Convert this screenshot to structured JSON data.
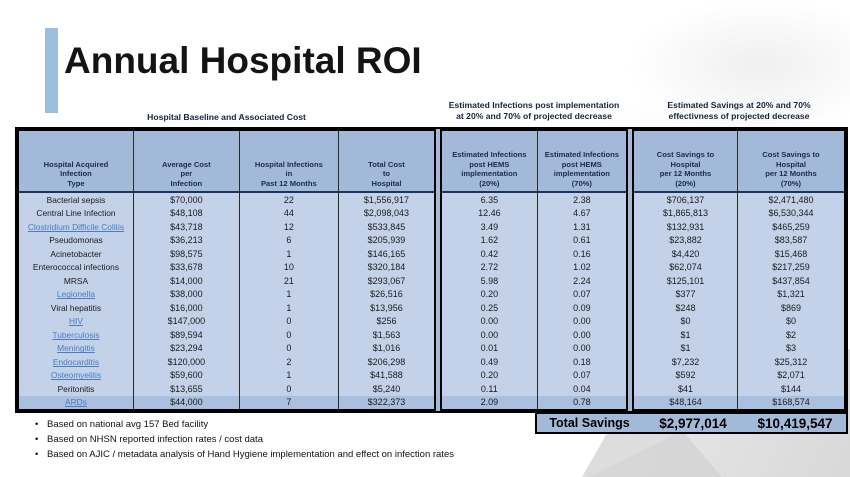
{
  "slide": {
    "title": "Annual Hospital ROI"
  },
  "colors": {
    "accent_bar": "#9abede",
    "table_header_bg": "#a3b9d8",
    "table_row_bg": "#c3d2e8",
    "table_last_row_bg": "#abc0de",
    "link": "#4a7cc0",
    "border": "#000000",
    "header_rule": "#17375e"
  },
  "table": {
    "group_headers": {
      "baseline": "Hospital Baseline and Associated Cost",
      "infections": "Estimated Infections post implementation\nat 20% and 70% of projected decrease",
      "savings": "Estimated Savings at 20% and 70%\neffectivness of projected decrease"
    },
    "columns": [
      "Hospital Acquired\nInfection\nType",
      "Average Cost\nper\nInfection",
      "Hospital Infections\nin\nPast 12 Months",
      "Total Cost\nto\nHospital",
      "Estimated Infections\npost HEMS\nimplementation\n(20%)",
      "Estimated Infections\npost HEMS\nimplementation\n(70%)",
      "Cost Savings to\nHospital\nper 12 Months\n(20%)",
      "Cost Savings to\nHospital\nper 12 Months\n(70%)"
    ],
    "rows": [
      {
        "type": "Bacterial sepsis",
        "link": false,
        "avg_cost": "$70,000",
        "infections": "22",
        "total_cost": "$1,556,917",
        "est20": "6.35",
        "est70": "2.38",
        "sav20": "$706,137",
        "sav70": "$2,471,480"
      },
      {
        "type": "Central Line Infection",
        "link": false,
        "avg_cost": "$48,108",
        "infections": "44",
        "total_cost": "$2,098,043",
        "est20": "12.46",
        "est70": "4.67",
        "sav20": "$1,865,813",
        "sav70": "$6,530,344"
      },
      {
        "type": "Clostridium Difficile Colitis",
        "link": true,
        "avg_cost": "$43,718",
        "infections": "12",
        "total_cost": "$533,845",
        "est20": "3.49",
        "est70": "1.31",
        "sav20": "$132,931",
        "sav70": "$465,259"
      },
      {
        "type": "Pseudomonas",
        "link": false,
        "avg_cost": "$36,213",
        "infections": "6",
        "total_cost": "$205,939",
        "est20": "1.62",
        "est70": "0.61",
        "sav20": "$23,882",
        "sav70": "$83,587"
      },
      {
        "type": "Acinetobacter",
        "link": false,
        "avg_cost": "$98,575",
        "infections": "1",
        "total_cost": "$146,165",
        "est20": "0.42",
        "est70": "0.16",
        "sav20": "$4,420",
        "sav70": "$15,468"
      },
      {
        "type": "Enterococcal infections",
        "link": false,
        "avg_cost": "$33,678",
        "infections": "10",
        "total_cost": "$320,184",
        "est20": "2.72",
        "est70": "1.02",
        "sav20": "$62,074",
        "sav70": "$217,259"
      },
      {
        "type": "MRSA",
        "link": false,
        "avg_cost": "$14,000",
        "infections": "21",
        "total_cost": "$293,067",
        "est20": "5.98",
        "est70": "2.24",
        "sav20": "$125,101",
        "sav70": "$437,854"
      },
      {
        "type": "Legionella",
        "link": true,
        "avg_cost": "$38,000",
        "infections": "1",
        "total_cost": "$26,516",
        "est20": "0.20",
        "est70": "0.07",
        "sav20": "$377",
        "sav70": "$1,321"
      },
      {
        "type": "Viral hepatitis",
        "link": false,
        "avg_cost": "$16,000",
        "infections": "1",
        "total_cost": "$13,956",
        "est20": "0.25",
        "est70": "0.09",
        "sav20": "$248",
        "sav70": "$869"
      },
      {
        "type": "HIV",
        "link": true,
        "avg_cost": "$147,000",
        "infections": "0",
        "total_cost": "$256",
        "est20": "0.00",
        "est70": "0.00",
        "sav20": "$0",
        "sav70": "$0"
      },
      {
        "type": "Tuberculosis",
        "link": true,
        "avg_cost": "$89,594",
        "infections": "0",
        "total_cost": "$1,563",
        "est20": "0.00",
        "est70": "0.00",
        "sav20": "$1",
        "sav70": "$2"
      },
      {
        "type": "Meningitis",
        "link": true,
        "avg_cost": "$23,294",
        "infections": "0",
        "total_cost": "$1,016",
        "est20": "0.01",
        "est70": "0.00",
        "sav20": "$1",
        "sav70": "$3"
      },
      {
        "type": "Endocarditis",
        "link": true,
        "avg_cost": "$120,000",
        "infections": "2",
        "total_cost": "$206,298",
        "est20": "0.49",
        "est70": "0.18",
        "sav20": "$7,232",
        "sav70": "$25,312"
      },
      {
        "type": "Osteomyelitis",
        "link": true,
        "avg_cost": "$59,600",
        "infections": "1",
        "total_cost": "$41,588",
        "est20": "0.20",
        "est70": "0.07",
        "sav20": "$592",
        "sav70": "$2,071"
      },
      {
        "type": "Peritonitis",
        "link": false,
        "avg_cost": "$13,655",
        "infections": "0",
        "total_cost": "$5,240",
        "est20": "0.11",
        "est70": "0.04",
        "sav20": "$41",
        "sav70": "$144"
      },
      {
        "type": "ARDs",
        "link": true,
        "avg_cost": "$44,000",
        "infections": "7",
        "total_cost": "$322,373",
        "est20": "2.09",
        "est70": "0.78",
        "sav20": "$48,164",
        "sav70": "$168,574"
      }
    ],
    "total": {
      "label": "Total Savings",
      "sav20": "$2,977,014",
      "sav70": "$10,419,547"
    }
  },
  "footnotes": [
    "Based on national avg 157 Bed facility",
    "Based on NHSN reported infection rates / cost data",
    "Based on AJIC / metadata analysis of Hand Hygiene implementation and effect on infection rates"
  ]
}
